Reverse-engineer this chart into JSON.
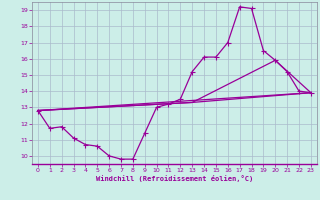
{
  "xlabel": "Windchill (Refroidissement éolien,°C)",
  "xlim": [
    -0.5,
    23.5
  ],
  "ylim": [
    9.5,
    19.5
  ],
  "yticks": [
    10,
    11,
    12,
    13,
    14,
    15,
    16,
    17,
    18,
    19
  ],
  "xticks": [
    0,
    1,
    2,
    3,
    4,
    5,
    6,
    7,
    8,
    9,
    10,
    11,
    12,
    13,
    14,
    15,
    16,
    17,
    18,
    19,
    20,
    21,
    22,
    23
  ],
  "bg_color": "#cceee8",
  "grid_color": "#aabbcc",
  "line_color": "#990099",
  "line1_x": [
    0,
    1,
    2,
    3,
    4,
    5,
    6,
    7,
    8,
    9,
    10,
    11,
    12,
    13,
    14,
    15,
    16,
    17,
    18,
    19,
    20,
    21,
    22,
    23
  ],
  "line1_y": [
    12.8,
    11.7,
    11.8,
    11.1,
    10.7,
    10.6,
    10.0,
    9.8,
    9.8,
    11.4,
    13.0,
    13.2,
    13.5,
    15.2,
    16.1,
    16.1,
    17.0,
    19.2,
    19.1,
    16.5,
    15.9,
    15.2,
    14.0,
    13.9
  ],
  "line2_x": [
    0,
    23
  ],
  "line2_y": [
    12.8,
    13.9
  ],
  "line3_x": [
    0,
    13,
    23
  ],
  "line3_y": [
    12.8,
    13.3,
    13.9
  ],
  "line4_x": [
    0,
    13,
    20,
    23
  ],
  "line4_y": [
    12.8,
    13.3,
    15.9,
    13.9
  ]
}
